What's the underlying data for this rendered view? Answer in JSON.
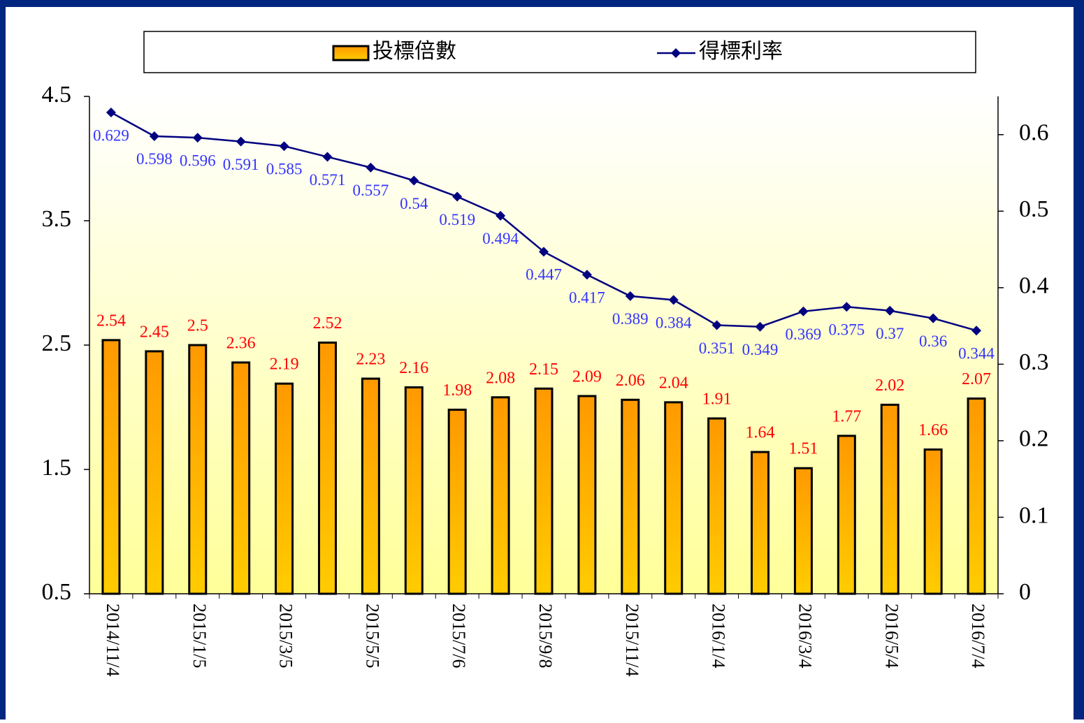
{
  "chart_data": {
    "type": "bar_line",
    "categories": [
      "2014/11/4",
      null,
      "2015/1/5",
      null,
      "2015/3/5",
      null,
      "2015/5/5",
      null,
      "2015/7/6",
      null,
      "2015/9/8",
      null,
      "2015/11/4",
      null,
      "2016/1/4",
      null,
      "2016/3/4",
      null,
      "2016/5/4",
      null,
      "2016/7/4"
    ],
    "series": [
      {
        "name": "投標倍數",
        "type": "bar",
        "color": "#ff9900",
        "values": [
          2.54,
          2.45,
          2.5,
          2.36,
          2.19,
          2.52,
          2.23,
          2.16,
          1.98,
          2.08,
          2.15,
          2.09,
          2.06,
          2.04,
          1.91,
          1.64,
          1.51,
          1.77,
          2.02,
          1.66,
          2.07
        ]
      },
      {
        "name": "得標利率",
        "type": "line",
        "axis": "y2",
        "color": "#000080",
        "values": [
          0.629,
          0.598,
          0.596,
          0.591,
          0.585,
          0.571,
          0.557,
          0.54,
          0.519,
          0.494,
          0.447,
          0.417,
          0.389,
          0.384,
          0.351,
          0.349,
          0.369,
          0.375,
          0.37,
          0.36,
          0.344
        ]
      }
    ],
    "ylim": [
      0.5,
      4.5
    ],
    "yticks": [
      0.5,
      1.5,
      2.5,
      3.5,
      4.5
    ],
    "y2lim": [
      0,
      0.65
    ],
    "y2ticks": [
      0,
      0.1,
      0.2,
      0.3,
      0.4,
      0.5,
      0.6
    ],
    "legend": "top"
  }
}
